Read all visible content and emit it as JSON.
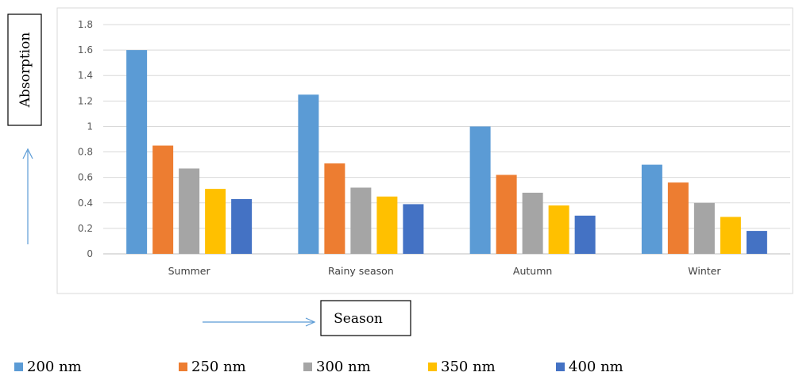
{
  "chart_data": {
    "type": "bar",
    "categories": [
      "Summer",
      "Rainy season",
      "Autumn",
      "Winter"
    ],
    "series": [
      {
        "name": "200 nm",
        "color": "#5B9BD5",
        "values": [
          1.6,
          1.25,
          1.0,
          0.7
        ]
      },
      {
        "name": "250 nm",
        "color": "#ED7D31",
        "values": [
          0.85,
          0.71,
          0.62,
          0.56
        ]
      },
      {
        "name": "300 nm",
        "color": "#A5A5A5",
        "values": [
          0.67,
          0.52,
          0.48,
          0.4
        ]
      },
      {
        "name": "350 nm",
        "color": "#FFC000",
        "values": [
          0.51,
          0.45,
          0.38,
          0.29
        ]
      },
      {
        "name": "400 nm",
        "color": "#4472C4",
        "values": [
          0.43,
          0.39,
          0.3,
          0.18
        ]
      }
    ],
    "ylim": [
      0,
      1.8
    ],
    "ytick_step": 0.2,
    "ytick_labels": [
      "0",
      "0.2",
      "0.4",
      "0.6",
      "0.8",
      "1",
      "1.2",
      "1.4",
      "1.6",
      "1.8"
    ],
    "ylabel": "Absorption",
    "xlabel": "Season",
    "grid": true,
    "legend_position": "bottom"
  }
}
